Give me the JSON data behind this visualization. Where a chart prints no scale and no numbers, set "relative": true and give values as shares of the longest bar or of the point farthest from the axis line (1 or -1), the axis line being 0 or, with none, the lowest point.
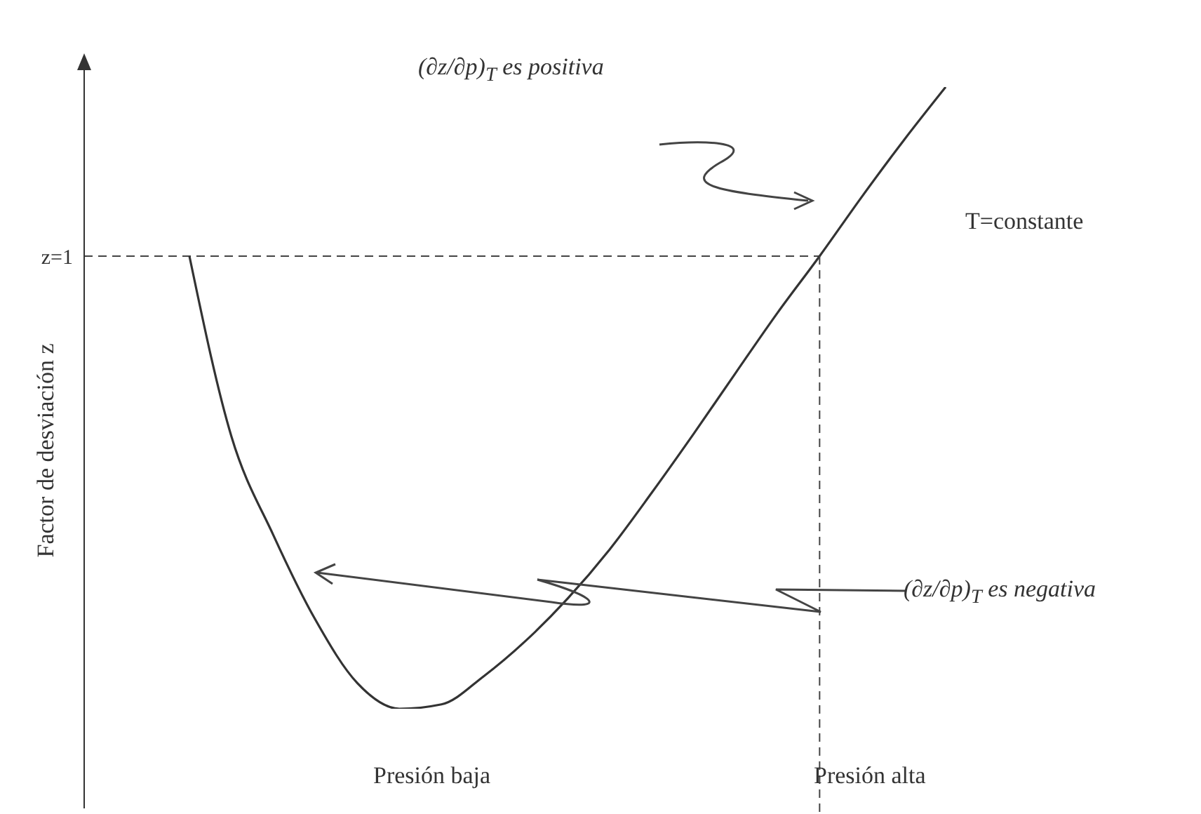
{
  "chart_data": {
    "type": "line",
    "relative": true,
    "marker": "none",
    "ylabel": "Factor de desviación z",
    "categories": [
      null,
      null,
      null,
      null,
      null,
      null,
      null,
      null,
      null,
      null,
      null,
      null,
      null,
      null,
      null,
      null,
      null,
      null,
      null
    ],
    "series": [
      {
        "color": "#333333",
        "values": [
          0.728,
          0.438,
          0.279,
          0.143,
          0.041,
          0,
          0.007,
          0.052,
          0.109,
          0.177,
          0.256,
          0.347,
          0.442,
          0.54,
          0.637,
          0.728,
          0.823,
          0.914,
          1
        ]
      }
    ],
    "ref_lines": [
      {
        "axis": "y",
        "value": 0.728,
        "label": "z=1",
        "line_style": "dashed"
      }
    ],
    "annotations": [
      "(∂z/∂p)$_{T}$ es positiva",
      "T=constante",
      "(∂z/∂p)$_{T}$ es negativa",
      "Presión baja",
      "Presión alta"
    ]
  }
}
